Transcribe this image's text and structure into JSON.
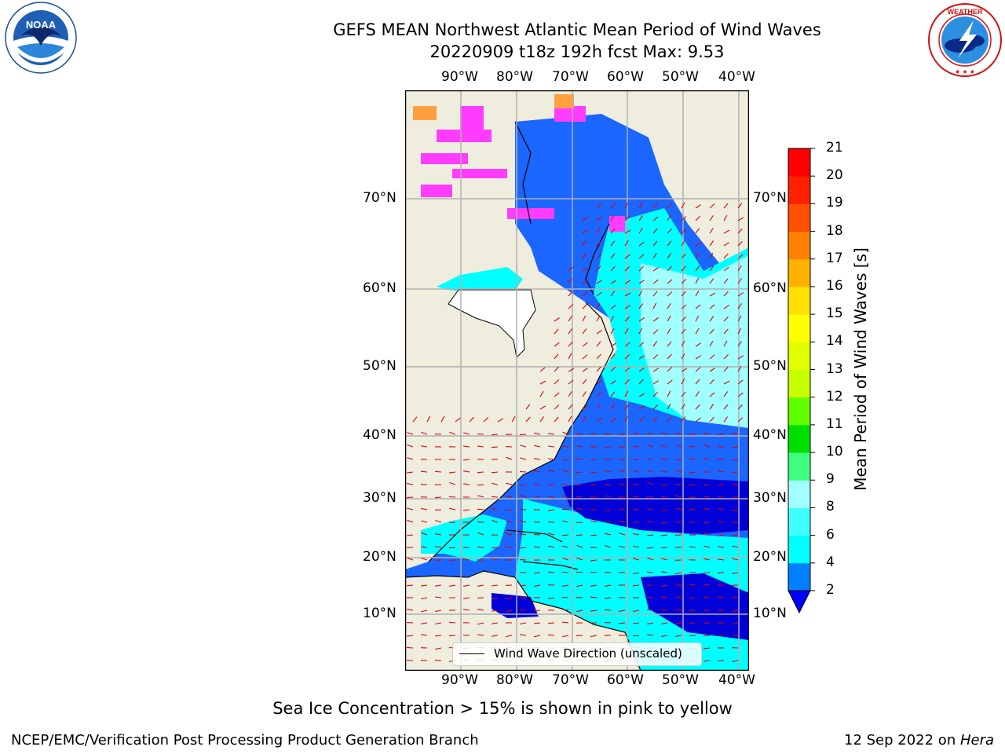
{
  "title": {
    "line1": "GEFS MEAN Northwest Atlantic Mean Period of Wind Waves",
    "line2": "20220909 t18z 192h fcst   Max: 9.53"
  },
  "map": {
    "lon_labels": [
      "90°W",
      "80°W",
      "70°W",
      "60°W",
      "50°W",
      "40°W"
    ],
    "lat_labels": [
      "70°N",
      "60°N",
      "50°N",
      "40°N",
      "30°N",
      "20°N",
      "10°N"
    ],
    "legend": "Wind Wave Direction (unscaled)",
    "colors": {
      "land": "#efedde",
      "ocean_low": "#0000d8",
      "ocean_mid": "#1a66ff",
      "ocean_high": "#00ffff",
      "ice": "#ff3cff",
      "arrows": "#e00000"
    }
  },
  "colorbar": {
    "label": "Mean Period of Wind Waves [s]",
    "ticks": [
      "2",
      "4",
      "6",
      "8",
      "9",
      "10",
      "11",
      "12",
      "13",
      "14",
      "15",
      "16",
      "17",
      "18",
      "19",
      "20",
      "21"
    ],
    "colors": [
      "#0000ff",
      "#0080ff",
      "#00ffff",
      "#40ffff",
      "#a0ffff",
      "#40ff80",
      "#00e000",
      "#60ff00",
      "#c8ff00",
      "#e0ff00",
      "#ffff00",
      "#ffe000",
      "#ffb000",
      "#ff8000",
      "#ff5000",
      "#ff2000",
      "#ff0000"
    ]
  },
  "logos": {
    "noaa_text": "NOAA",
    "noaa_ring": "NATIONAL OCEANIC AND ATMOSPHERIC ADMINISTRATION · U.S. DEPARTMENT OF COMMERCE",
    "nws_ring": "NATIONAL WEATHER SERVICE"
  },
  "ice_note": "Sea Ice Concentration > 15% is shown in pink to yellow",
  "footer": {
    "left": "NCEP/EMC/Verification Post Processing Product Generation Branch",
    "date": "12 Sep 2022 on ",
    "machine": "Hera"
  }
}
